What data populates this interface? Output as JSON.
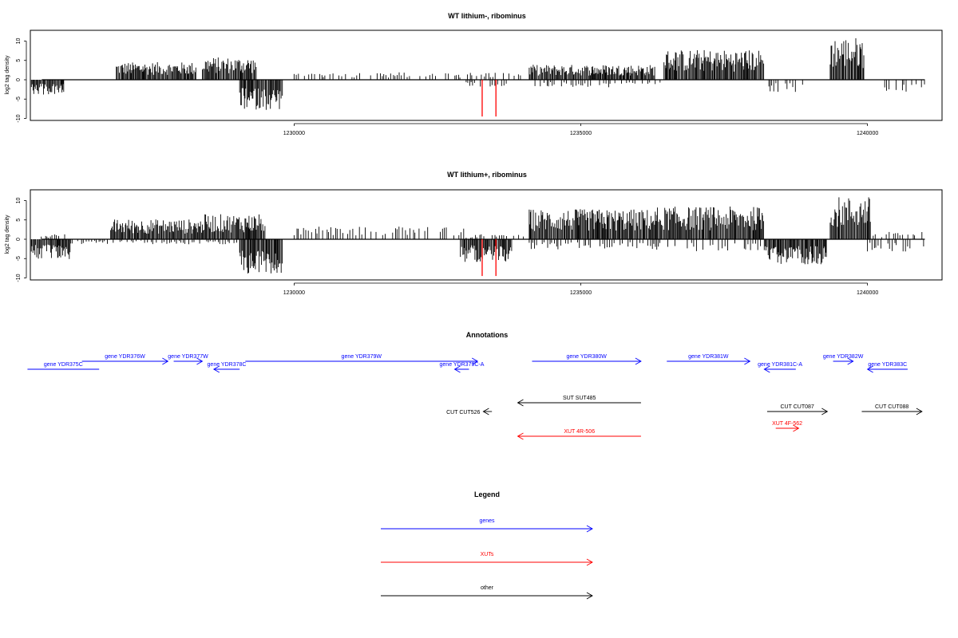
{
  "chart_data": [
    {
      "type": "bar",
      "title": "WT lithium-, ribominus",
      "ylabel": "log2 tag density",
      "xlabel": "",
      "xlim": [
        1225400,
        1241300
      ],
      "ylim": [
        -10,
        12
      ],
      "yticks": [
        10,
        5,
        0,
        -5,
        -10
      ],
      "xticks": [
        1230000,
        1235000,
        1240000
      ],
      "x_tick_labels": [
        "1230000",
        "1235000",
        "1240000"
      ],
      "grid": false,
      "series": [
        {
          "strand": "plus",
          "regions": [
            {
              "x": [
                1226900,
                1228300
              ],
              "level": 3.5
            },
            {
              "x": [
                1228400,
                1229350
              ],
              "level": 4.5
            },
            {
              "x": [
                1230000,
                1234000
              ],
              "level": 1.5
            },
            {
              "x": [
                1234100,
                1236300
              ],
              "level": 3.0
            },
            {
              "x": [
                1236450,
                1238200
              ],
              "level": 6.0
            },
            {
              "x": [
                1239350,
                1239950
              ],
              "level": 8.5
            }
          ]
        },
        {
          "strand": "minus",
          "regions": [
            {
              "x": [
                1225400,
                1226000
              ],
              "level": -3.0
            },
            {
              "x": [
                1229050,
                1229800
              ],
              "level": -6.0
            },
            {
              "x": [
                1233000,
                1233700
              ],
              "level": -1.5
            },
            {
              "x": [
                1234200,
                1236400
              ],
              "level": -1.5
            },
            {
              "x": [
                1238200,
                1238900
              ],
              "level": -2.5
            },
            {
              "x": [
                1240300,
                1241000
              ],
              "level": -2.5
            }
          ]
        },
        {
          "strand": "highlight",
          "color": "#ff0000",
          "bars": [
            {
              "x": 1233280,
              "y": -9.5
            },
            {
              "x": 1233520,
              "y": -9.5
            }
          ]
        }
      ]
    },
    {
      "type": "bar",
      "title": "WT lithium+, ribominus",
      "ylabel": "log2 tag density",
      "xlabel": "",
      "xlim": [
        1225400,
        1241300
      ],
      "ylim": [
        -10,
        12
      ],
      "yticks": [
        10,
        5,
        0,
        -5,
        -10
      ],
      "xticks": [
        1230000,
        1235000,
        1240000
      ],
      "x_tick_labels": [
        "1230000",
        "1235000",
        "1240000"
      ],
      "grid": false,
      "series": [
        {
          "strand": "plus",
          "regions": [
            {
              "x": [
                1225400,
                1226000
              ],
              "level": 1.0
            },
            {
              "x": [
                1226800,
                1228400
              ],
              "level": 4.0
            },
            {
              "x": [
                1228400,
                1229500
              ],
              "level": 5.0
            },
            {
              "x": [
                1230000,
                1233000
              ],
              "level": 2.5
            },
            {
              "x": [
                1233000,
                1234000
              ],
              "level": 1.0
            },
            {
              "x": [
                1234100,
                1236300
              ],
              "level": 6.0
            },
            {
              "x": [
                1236300,
                1238200
              ],
              "level": 6.5
            },
            {
              "x": [
                1239350,
                1240050
              ],
              "level": 8.5
            },
            {
              "x": [
                1240100,
                1241000
              ],
              "level": 1.5
            }
          ]
        },
        {
          "strand": "minus",
          "regions": [
            {
              "x": [
                1225400,
                1226100
              ],
              "level": -4.0
            },
            {
              "x": [
                1226100,
                1229000
              ],
              "level": -1.0
            },
            {
              "x": [
                1229050,
                1229800
              ],
              "level": -7.0
            },
            {
              "x": [
                1232900,
                1233800
              ],
              "level": -4.5
            },
            {
              "x": [
                1234100,
                1236300
              ],
              "level": -2.0
            },
            {
              "x": [
                1236300,
                1238200
              ],
              "level": -2.5
            },
            {
              "x": [
                1238200,
                1239300
              ],
              "level": -5.0
            },
            {
              "x": [
                1240000,
                1241000
              ],
              "level": -2.5
            }
          ]
        },
        {
          "strand": "highlight",
          "color": "#ff0000",
          "bars": [
            {
              "x": 1233280,
              "y": -9.5
            },
            {
              "x": 1233520,
              "y": -9.5
            }
          ]
        }
      ]
    }
  ],
  "annotations": {
    "title": "Annotations",
    "features": [
      {
        "label": "gene YDR375C",
        "color": "#0000ff",
        "x1": 1225350,
        "x2": 1226600,
        "dir": "left",
        "row": 2,
        "label_pos": "above",
        "arrow": false
      },
      {
        "label": "gene YDR376W",
        "color": "#0000ff",
        "x1": 1226300,
        "x2": 1227800,
        "dir": "right",
        "row": 1,
        "label_pos": "above"
      },
      {
        "label": "gene YDR377W",
        "color": "#0000ff",
        "x1": 1227900,
        "x2": 1228400,
        "dir": "right",
        "row": 1,
        "label_pos": "above"
      },
      {
        "label": "gene YDR378C",
        "color": "#0000ff",
        "x1": 1228600,
        "x2": 1229050,
        "dir": "left",
        "row": 2,
        "label_pos": "above"
      },
      {
        "label": "gene YDR379W",
        "color": "#0000ff",
        "x1": 1229150,
        "x2": 1233200,
        "dir": "right",
        "row": 1,
        "label_pos": "above"
      },
      {
        "label": "gene YDR379C-A",
        "color": "#0000ff",
        "x1": 1232800,
        "x2": 1233050,
        "dir": "left",
        "row": 2,
        "label_pos": "above"
      },
      {
        "label": "gene YDR380W",
        "color": "#0000ff",
        "x1": 1234150,
        "x2": 1236050,
        "dir": "right",
        "row": 1,
        "label_pos": "above"
      },
      {
        "label": "gene YDR381W",
        "color": "#0000ff",
        "x1": 1236500,
        "x2": 1237950,
        "dir": "right",
        "row": 1,
        "label_pos": "above"
      },
      {
        "label": "gene YDR381C-A",
        "color": "#0000ff",
        "x1": 1238200,
        "x2": 1238750,
        "dir": "left",
        "row": 2,
        "label_pos": "above"
      },
      {
        "label": "gene YDR382W",
        "color": "#0000ff",
        "x1": 1239400,
        "x2": 1239750,
        "dir": "right",
        "row": 1,
        "label_pos": "above"
      },
      {
        "label": "gene YDR383C",
        "color": "#0000ff",
        "x1": 1240000,
        "x2": 1240700,
        "dir": "left",
        "row": 2,
        "label_pos": "above"
      },
      {
        "label": "SUT SUT485",
        "color": "#000000",
        "x1": 1233900,
        "x2": 1236050,
        "dir": "left",
        "row": 3,
        "label_pos": "above"
      },
      {
        "label": "CUT CUT526",
        "color": "#000000",
        "x1": 1233300,
        "x2": 1233450,
        "dir": "left",
        "row": 4,
        "label_pos": "left"
      },
      {
        "label": "CUT CUT087",
        "color": "#000000",
        "x1": 1238250,
        "x2": 1239300,
        "dir": "right",
        "row": 4,
        "label_pos": "above"
      },
      {
        "label": "CUT CUT088",
        "color": "#000000",
        "x1": 1239900,
        "x2": 1240950,
        "dir": "right",
        "row": 4,
        "label_pos": "above"
      },
      {
        "label": "XUT 4R-506",
        "color": "#ff0000",
        "x1": 1233900,
        "x2": 1236050,
        "dir": "left",
        "row": 5,
        "label_pos": "above"
      },
      {
        "label": "XUT 4F-562",
        "color": "#ff0000",
        "x1": 1238400,
        "x2": 1238800,
        "dir": "right",
        "row": 6,
        "label_pos": "above"
      }
    ]
  },
  "legend": {
    "title": "Legend",
    "items": [
      {
        "label": "genes",
        "color": "#0000ff"
      },
      {
        "label": "XUTs",
        "color": "#ff0000"
      },
      {
        "label": "other",
        "color": "#000000"
      }
    ]
  }
}
